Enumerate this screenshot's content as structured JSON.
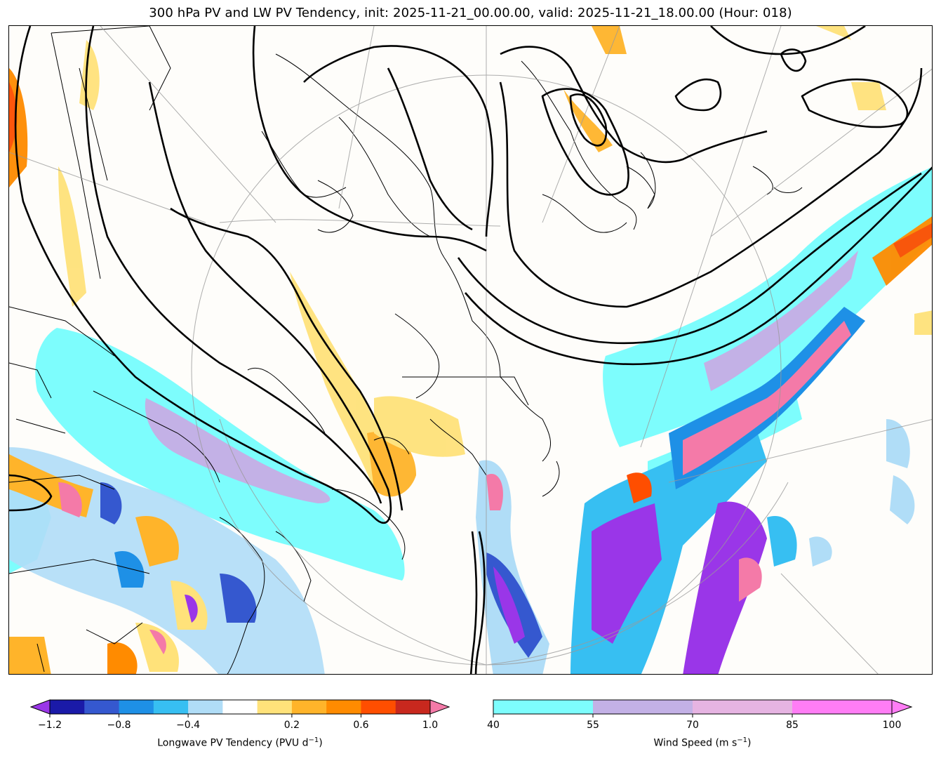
{
  "title": "300 hPa PV and LW PV Tendency, init: 2025-11-21_00.00.00, valid: 2025-11-21_18.00.00 (Hour: 018)",
  "colorbars": {
    "pv_tendency": {
      "label_pre": "Longwave PV Tendency (PVU d",
      "label_exp": "−1",
      "label_post": ")",
      "colors": [
        "#9a36e8",
        "#1a1aa8",
        "#3558cf",
        "#1e90e6",
        "#37bff2",
        "#b0ddf7",
        "#ffffff",
        "#ffe27a",
        "#ffb42a",
        "#ff8b00",
        "#ff4e00",
        "#c8281e",
        "#f47aa8"
      ],
      "tick_labels": [
        "−1.2",
        "−0.8",
        "−0.4",
        "0.2",
        "0.6",
        "1.0"
      ]
    },
    "wind_speed": {
      "label_pre": "Wind Speed (m s",
      "label_exp": "−1",
      "label_post": ")",
      "colors": [
        "#7dfdfd",
        "#c3b1e6",
        "#e6b4e2",
        "#ff7df5"
      ],
      "tick_labels": [
        "40",
        "55",
        "70",
        "85",
        "100"
      ]
    }
  }
}
